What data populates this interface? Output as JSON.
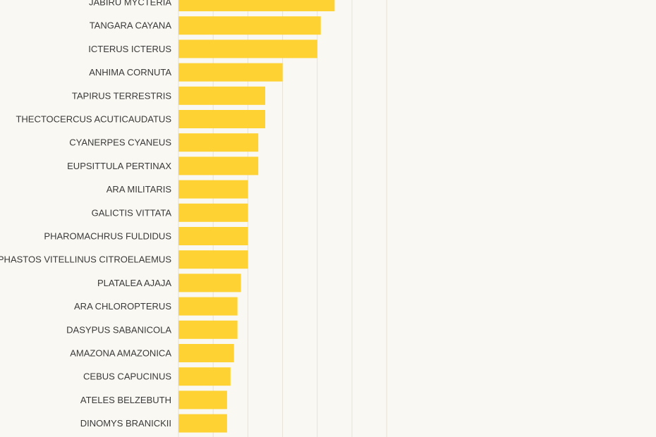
{
  "colors": {
    "background": "#faf8f2",
    "bar": "#ffd233",
    "gridline": "#e6e2d8",
    "label": "#3a3a3a"
  },
  "chart_data": {
    "type": "bar",
    "orientation": "horizontal",
    "title": "",
    "xlabel": "",
    "ylabel": "",
    "grid": true,
    "xlim": [
      0,
      69
    ],
    "categories": [
      "JABIRU MYCTERIA",
      "TANGARA CAYANA",
      "ICTERUS ICTERUS",
      "ANHIMA CORNUTA",
      "TAPIRUS TERRESTRIS",
      "THECTOCERCUS ACUTICAUDATUS",
      "CYANERPES CYANEUS",
      "EUPSITTULA PERTINAX",
      "ARA MILITARIS",
      "GALICTIS VITTATA",
      "PHAROMACHRUS FULDIDUS",
      "RAMPHASTOS VITELLINUS CITROELAEMUS",
      "PLATALEA AJAJA",
      "ARA CHLOROPTERUS",
      "DASYPUS SABANICOLA",
      "AMAZONA AMAZONICA",
      "CEBUS CAPUCINUS",
      "ATELES BELZEBUTH",
      "DINOMYS BRANICKII"
    ],
    "values": [
      45,
      41,
      40,
      30,
      25,
      25,
      23,
      23,
      20,
      20,
      20,
      20,
      18,
      17,
      17,
      16,
      15,
      14,
      14
    ]
  }
}
